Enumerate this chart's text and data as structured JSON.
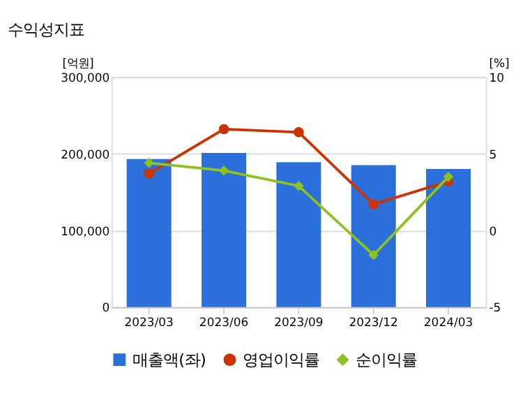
{
  "chart_data": {
    "type": "bar",
    "title": "수익성지표",
    "ylabel": "[억원]",
    "y2label": "[%]",
    "categories": [
      "2023/03",
      "2023/06",
      "2023/09",
      "2023/12",
      "2024/03"
    ],
    "series": [
      {
        "name": "매출액(좌)",
        "color": "#2b6fdb",
        "values": [
          193000,
          201000,
          189000,
          185000,
          180000
        ]
      },
      {
        "name": "영업이익률",
        "type": "line",
        "axis": "y2",
        "marker": "circle",
        "color": "#cc3300",
        "values": [
          3.7,
          6.6,
          6.4,
          1.7,
          3.2
        ]
      },
      {
        "name": "순이익률",
        "type": "line",
        "axis": "y2",
        "marker": "diamond",
        "color": "#8dc21f",
        "values": [
          4.4,
          3.9,
          2.9,
          -1.6,
          3.5
        ]
      }
    ],
    "ylim": [
      0,
      300000
    ],
    "yticks": [
      0,
      {
        "value": 100000,
        "label": "100,000"
      },
      {
        "value": 200000,
        "label": "200,000"
      },
      {
        "value": 300000,
        "label": "300,000"
      }
    ],
    "y2lim": [
      -5,
      10
    ],
    "y2ticks": [
      -5,
      0,
      5,
      10
    ],
    "grid": "y",
    "legend": "bottom"
  }
}
